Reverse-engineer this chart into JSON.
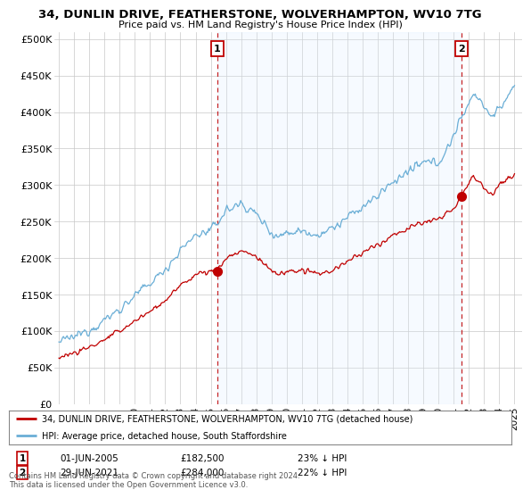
{
  "title": "34, DUNLIN DRIVE, FEATHERSTONE, WOLVERHAMPTON, WV10 7TG",
  "subtitle": "Price paid vs. HM Land Registry's House Price Index (HPI)",
  "yticks": [
    0,
    50000,
    100000,
    150000,
    200000,
    250000,
    300000,
    350000,
    400000,
    450000,
    500000
  ],
  "ytick_labels": [
    "£0",
    "£50K",
    "£100K",
    "£150K",
    "£200K",
    "£250K",
    "£300K",
    "£350K",
    "£400K",
    "£450K",
    "£500K"
  ],
  "ylim": [
    0,
    510000
  ],
  "xlim_start": 1994.7,
  "xlim_end": 2025.5,
  "xticks": [
    1995,
    1996,
    1997,
    1998,
    1999,
    2000,
    2001,
    2002,
    2003,
    2004,
    2005,
    2006,
    2007,
    2008,
    2009,
    2010,
    2011,
    2012,
    2013,
    2014,
    2015,
    2016,
    2017,
    2018,
    2019,
    2020,
    2021,
    2022,
    2023,
    2024,
    2025
  ],
  "marker1_x": 2005.42,
  "marker1_y": 182500,
  "marker1_label": "1",
  "marker1_date": "01-JUN-2005",
  "marker1_price": "£182,500",
  "marker1_hpi": "23% ↓ HPI",
  "marker2_x": 2021.5,
  "marker2_y": 284000,
  "marker2_label": "2",
  "marker2_date": "29-JUN-2021",
  "marker2_price": "£284,000",
  "marker2_hpi": "22% ↓ HPI",
  "hpi_color": "#6aaed6",
  "price_color": "#c00000",
  "vline_color": "#c00000",
  "shade_color": "#ddeeff",
  "legend_label_red": "34, DUNLIN DRIVE, FEATHERSTONE, WOLVERHAMPTON, WV10 7TG (detached house)",
  "legend_label_blue": "HPI: Average price, detached house, South Staffordshire",
  "footer": "Contains HM Land Registry data © Crown copyright and database right 2024.\nThis data is licensed under the Open Government Licence v3.0.",
  "background_color": "#ffffff",
  "grid_color": "#c8c8c8"
}
